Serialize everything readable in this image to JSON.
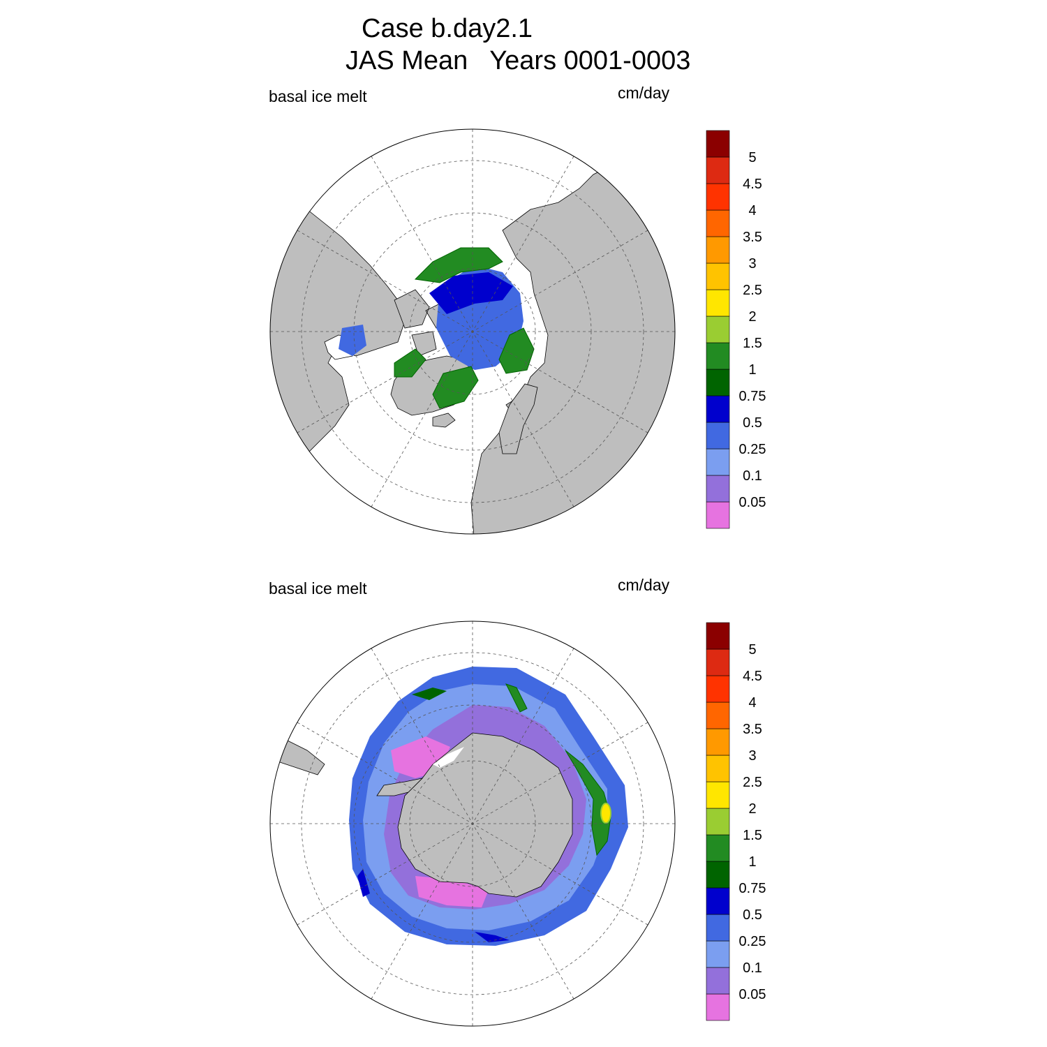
{
  "title": {
    "line1": "Case b.day2.1",
    "line2": "JAS Mean   Years 0001-0003"
  },
  "colors": {
    "land": "#bebebe",
    "ocean": "#ffffff",
    "grid": "#555555"
  },
  "colorbar": {
    "levels": [
      "0.05",
      "0.1",
      "0.25",
      "0.5",
      "0.75",
      "1",
      "1.5",
      "2",
      "2.5",
      "3",
      "3.5",
      "4",
      "4.5",
      "5"
    ],
    "colors": [
      "#e673e0",
      "#9370db",
      "#7b9ef0",
      "#4169e1",
      "#0000cd",
      "#006400",
      "#228b22",
      "#9acd32",
      "#ffe600",
      "#ffc300",
      "#ff9900",
      "#ff6600",
      "#ff3300",
      "#dd2a12",
      "#8b0000"
    ]
  },
  "panels": [
    {
      "hemisphere": "north",
      "left_label": "basal ice melt",
      "right_label": "cm/day"
    },
    {
      "hemisphere": "south",
      "left_label": "basal ice melt",
      "right_label": "cm/day"
    }
  ]
}
